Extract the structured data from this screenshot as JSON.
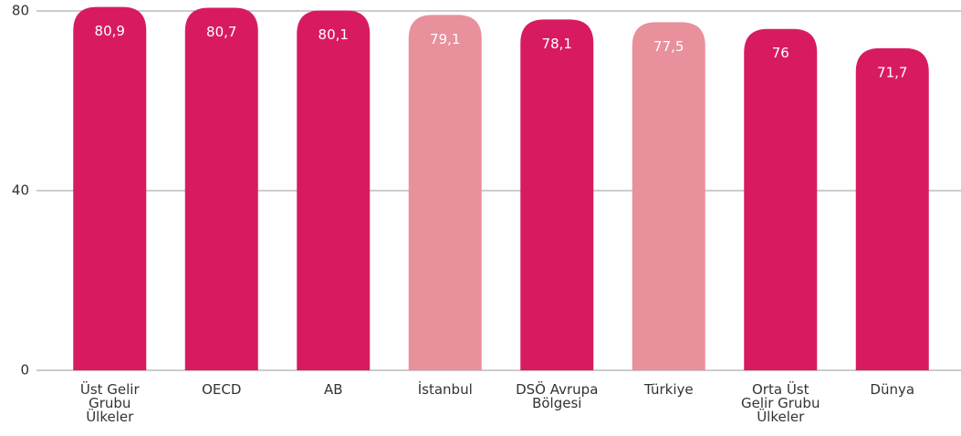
{
  "chart_data": {
    "type": "bar",
    "categories": [
      "Üst Gelir Grubu Ülkeler",
      "OECD",
      "AB",
      "İstanbul",
      "DSÖ Avrupa Bölgesi",
      "Türkiye",
      "Orta Üst Gelir Grubu Ülkeler",
      "Dünya"
    ],
    "values": [
      80.9,
      80.7,
      80.1,
      79.1,
      78.1,
      77.5,
      76,
      71.7
    ],
    "value_labels": [
      "80,9",
      "80,7",
      "80,1",
      "79,1",
      "78,1",
      "77,5",
      "76",
      "71,7"
    ],
    "colors": [
      "#d81b60",
      "#d81b60",
      "#d81b60",
      "#e8909c",
      "#d81b60",
      "#e8909c",
      "#d81b60",
      "#d81b60"
    ],
    "ylim": [
      0,
      80
    ],
    "yticks": [
      0,
      40,
      80
    ],
    "grid": true
  }
}
